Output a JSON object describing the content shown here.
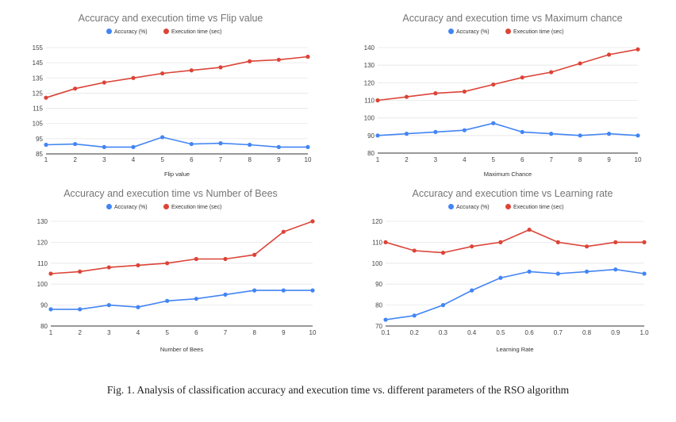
{
  "colors": {
    "accuracy": "#4285F4",
    "execution": "#DB4437",
    "grid": "#E6E6E6",
    "axis": "#333333"
  },
  "legend_labels": [
    "Accuracy (%)",
    "Execution time (sec)"
  ],
  "caption": "Fig. 1.  Analysis of classification accuracy and execution time vs. different parameters of the RSO algorithm",
  "chart_data": [
    {
      "type": "line",
      "title": "Accuracy and execution time vs Flip value",
      "xlabel": "Flip value",
      "ylabel": "",
      "categories": [
        "1",
        "2",
        "3",
        "4",
        "5",
        "6",
        "7",
        "8",
        "9",
        "10"
      ],
      "yticks": [
        85,
        95,
        105,
        115,
        125,
        135,
        145,
        155
      ],
      "ylim": [
        85,
        155
      ],
      "legend": "top",
      "grid": true,
      "series": [
        {
          "name": "Accuracy (%)",
          "values": [
            91,
            91.5,
            89.5,
            89.5,
            96,
            91.5,
            92,
            91,
            89.5,
            89.5
          ]
        },
        {
          "name": "Execution time (sec)",
          "values": [
            122,
            128,
            132,
            135,
            138,
            140,
            142,
            146,
            147,
            149
          ]
        }
      ]
    },
    {
      "type": "line",
      "title": "Accuracy and execution time vs Maximum chance",
      "xlabel": "Maximum Chance",
      "ylabel": "",
      "categories": [
        "1",
        "2",
        "3",
        "4",
        "5",
        "6",
        "7",
        "8",
        "9",
        "10"
      ],
      "yticks": [
        80,
        90,
        100,
        110,
        120,
        130,
        140
      ],
      "ylim": [
        80,
        140
      ],
      "legend": "top",
      "grid": true,
      "series": [
        {
          "name": "Accuracy (%)",
          "values": [
            90,
            91,
            92,
            93,
            97,
            92,
            91,
            90,
            91,
            90
          ]
        },
        {
          "name": "Execution time (sec)",
          "values": [
            110,
            112,
            114,
            115,
            119,
            123,
            126,
            131,
            136,
            139
          ]
        }
      ]
    },
    {
      "type": "line",
      "title": "Accuracy and execution time vs Number of Bees",
      "xlabel": "Number of Bees",
      "ylabel": "",
      "categories": [
        "1",
        "2",
        "3",
        "4",
        "5",
        "6",
        "7",
        "8",
        "9",
        "10"
      ],
      "yticks": [
        80,
        90,
        100,
        110,
        120,
        130
      ],
      "ylim": [
        80,
        130
      ],
      "legend": "top",
      "grid": true,
      "series": [
        {
          "name": "Accuracy (%)",
          "values": [
            88,
            88,
            90,
            89,
            92,
            93,
            95,
            97,
            97,
            97
          ]
        },
        {
          "name": "Execution time (sec)",
          "values": [
            105,
            106,
            108,
            109,
            110,
            112,
            112,
            114,
            125,
            130
          ]
        }
      ]
    },
    {
      "type": "line",
      "title": "Accuracy and execution time vs Learning rate",
      "xlabel": "Learning Rate",
      "ylabel": "",
      "categories": [
        "0.1",
        "0.2",
        "0.3",
        "0.4",
        "0.5",
        "0.6",
        "0.7",
        "0.8",
        "0.9",
        "1.0"
      ],
      "yticks": [
        70,
        80,
        90,
        100,
        110,
        120
      ],
      "ylim": [
        70,
        120
      ],
      "legend": "top",
      "grid": true,
      "series": [
        {
          "name": "Accuracy (%)",
          "values": [
            73,
            75,
            80,
            87,
            93,
            96,
            95,
            96,
            97,
            95
          ]
        },
        {
          "name": "Execution time (sec)",
          "values": [
            110,
            106,
            105,
            108,
            110,
            116,
            110,
            108,
            110,
            110
          ]
        }
      ]
    }
  ]
}
